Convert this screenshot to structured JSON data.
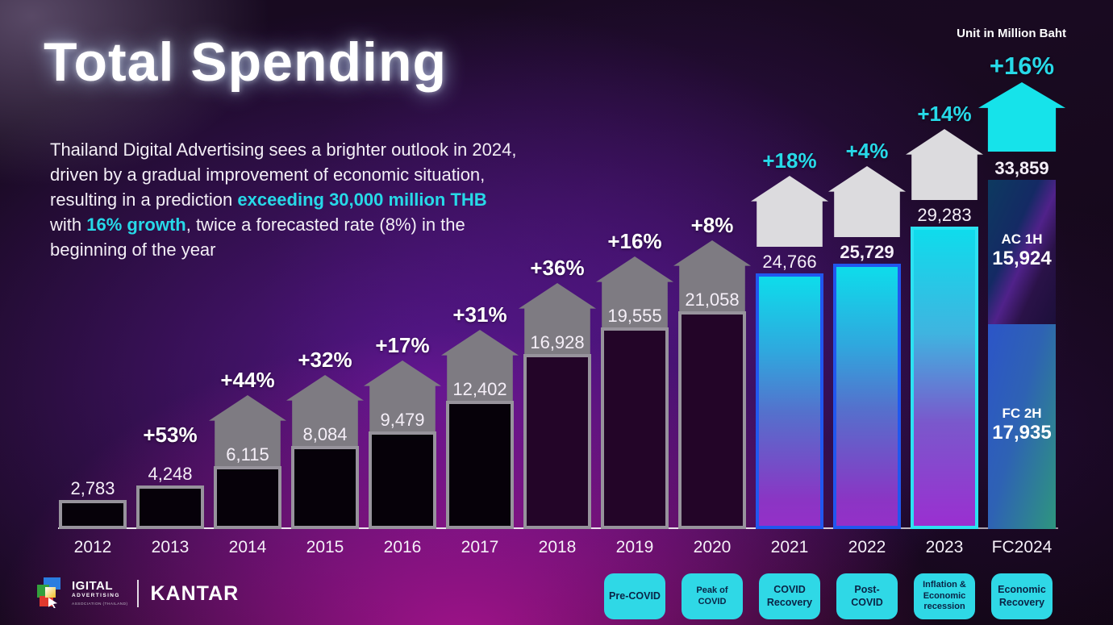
{
  "meta": {
    "unit_label": "Unit in Million Baht"
  },
  "title": {
    "text": "Total Spending"
  },
  "intro": {
    "segments": [
      {
        "text": "Thailand Digital Advertising sees a brighter outlook in 2024, driven by a gradual improvement of economic situation, resulting in a prediction ",
        "accent": false
      },
      {
        "text": "exceeding 30,000 million THB",
        "accent": true
      },
      {
        "text": " with ",
        "accent": false
      },
      {
        "text": "16% growth",
        "accent": true
      },
      {
        "text": ", twice a forecasted rate (8%) in the beginning of the year",
        "accent": false
      }
    ]
  },
  "chart_data": {
    "type": "bar",
    "title": "Total Spending",
    "unit": "Million Baht",
    "ylim": [
      0,
      35000
    ],
    "grid": false,
    "categories": [
      "2012",
      "2013",
      "2014",
      "2015",
      "2016",
      "2017",
      "2018",
      "2019",
      "2020",
      "2021",
      "2022",
      "2023",
      "FC2024"
    ],
    "values": [
      2783,
      4248,
      6115,
      8084,
      9479,
      12402,
      16928,
      19555,
      21058,
      24766,
      25729,
      29283,
      33859
    ],
    "value_labels": [
      "2,783",
      "4,248",
      "6,115",
      "8,084",
      "9,479",
      "12,402",
      "16,928",
      "19,555",
      "21,058",
      "24,766",
      "25,729",
      "29,283",
      "33,859"
    ],
    "bold_value_labels": [
      "25,729",
      "33,859"
    ],
    "growth_labels": [
      "",
      "+53%",
      "+44%",
      "+32%",
      "+17%",
      "+31%",
      "+36%",
      "+16%",
      "+8%",
      "+18%",
      "+4%",
      "+14%",
      "+16%"
    ],
    "growth_pct": [
      null,
      53,
      44,
      32,
      17,
      31,
      36,
      16,
      8,
      18,
      4,
      14,
      16
    ],
    "fc2024_stack": {
      "category": "FC2024",
      "total_label": "33,859",
      "segments": [
        {
          "label": "AC 1H",
          "value": 15924,
          "value_label": "15,924",
          "position": "top"
        },
        {
          "label": "FC 2H",
          "value": 17935,
          "value_label": "17,935",
          "position": "bottom"
        }
      ]
    },
    "period_tags": [
      {
        "category": "2019",
        "lines": [
          "Pre-COVID"
        ]
      },
      {
        "category": "2020",
        "lines": [
          "Peak of COVID"
        ]
      },
      {
        "category": "2021",
        "lines": [
          "COVID",
          "Recovery"
        ]
      },
      {
        "category": "2022",
        "lines": [
          "Post-",
          "COVID"
        ]
      },
      {
        "category": "2023",
        "lines": [
          "Inflation &",
          "Economic",
          "recession"
        ]
      },
      {
        "category": "FC2024",
        "lines": [
          "Economic",
          "Recovery"
        ]
      }
    ]
  },
  "colors": {
    "accent_cyan": "#27d9e8",
    "growth_label_white": "#ffffff",
    "arrow_gray": "#7e7b82",
    "arrow_light": "#dcdbde",
    "arrow_cyan": "#16e3ea",
    "bar_border_gray": "#97939c",
    "bar_border_blue": "#2157ef",
    "bar_border_cyan": "#2ce2f2",
    "period_tag_bg": "#2fd8e6",
    "period_tag_text": "#0a2446",
    "background_purple_glow": "#8020d8",
    "background_magenta_glow": "#ec16ba"
  },
  "footer": {
    "daat_line1": "IGITAL",
    "daat_line2": "ADVERTISING",
    "daat_line3": "ASSOCIATION (THAILAND)",
    "kantar": "KANTAR"
  }
}
